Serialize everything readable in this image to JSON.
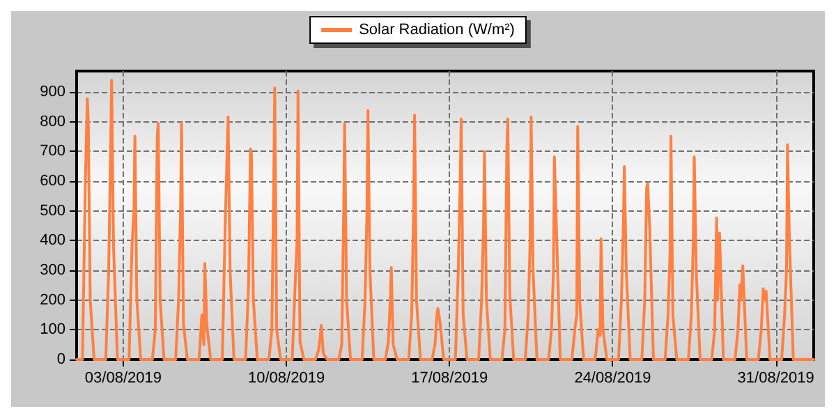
{
  "chart_data": {
    "type": "line",
    "xlim": [
      "2019-08-01T00:00",
      "2019-09-01T15:00"
    ],
    "ylim": [
      0,
      970
    ],
    "yticks": [
      0,
      100,
      200,
      300,
      400,
      500,
      600,
      700,
      800,
      900
    ],
    "xticks": [
      {
        "value": "2019-08-03",
        "label": "03/08/2019"
      },
      {
        "value": "2019-08-10",
        "label": "10/08/2019"
      },
      {
        "value": "2019-08-17",
        "label": "17/08/2019"
      },
      {
        "value": "2019-08-24",
        "label": "24/08/2019"
      },
      {
        "value": "2019-08-31",
        "label": "31/08/2019"
      }
    ],
    "grid": true,
    "legend": "top",
    "marker": "none",
    "line_style": "solid",
    "series": [
      {
        "name": "Solar Radiation (W/m²)",
        "color": "#ff8040",
        "x": [
          "2019-08-01T00:00",
          "2019-08-01T06:00",
          "2019-08-01T09:00",
          "2019-08-01T11:00",
          "2019-08-01T12:00",
          "2019-08-01T14:00",
          "2019-08-01T18:00",
          "2019-08-02T06:00",
          "2019-08-02T09:00",
          "2019-08-02T11:00",
          "2019-08-02T12:00",
          "2019-08-02T14:00",
          "2019-08-02T18:00",
          "2019-08-03T06:00",
          "2019-08-03T09:00",
          "2019-08-03T11:00",
          "2019-08-03T12:00",
          "2019-08-03T14:00",
          "2019-08-03T18:00",
          "2019-08-04T06:00",
          "2019-08-04T09:00",
          "2019-08-04T11:00",
          "2019-08-04T12:00",
          "2019-08-04T14:00",
          "2019-08-04T18:00",
          "2019-08-05T06:00",
          "2019-08-05T09:00",
          "2019-08-05T11:00",
          "2019-08-05T12:00",
          "2019-08-05T14:00",
          "2019-08-05T18:00",
          "2019-08-06T06:00",
          "2019-08-06T09:00",
          "2019-08-06T11:00",
          "2019-08-06T12:00",
          "2019-08-06T14:00",
          "2019-08-06T18:00",
          "2019-08-07T06:00",
          "2019-08-07T09:00",
          "2019-08-07T11:00",
          "2019-08-07T12:00",
          "2019-08-07T14:00",
          "2019-08-07T18:00",
          "2019-08-08T06:00",
          "2019-08-08T09:00",
          "2019-08-08T11:00",
          "2019-08-08T12:00",
          "2019-08-08T14:00",
          "2019-08-08T18:00",
          "2019-08-09T06:00",
          "2019-08-09T09:00",
          "2019-08-09T11:00",
          "2019-08-09T12:00",
          "2019-08-09T14:00",
          "2019-08-09T18:00",
          "2019-08-10T06:00",
          "2019-08-10T09:00",
          "2019-08-10T11:00",
          "2019-08-10T12:00",
          "2019-08-10T14:00",
          "2019-08-10T18:00",
          "2019-08-11T06:00",
          "2019-08-11T09:00",
          "2019-08-11T11:00",
          "2019-08-11T12:00",
          "2019-08-11T14:00",
          "2019-08-11T18:00",
          "2019-08-12T06:00",
          "2019-08-12T09:00",
          "2019-08-12T11:00",
          "2019-08-12T12:00",
          "2019-08-12T14:00",
          "2019-08-12T18:00",
          "2019-08-13T06:00",
          "2019-08-13T09:00",
          "2019-08-13T11:00",
          "2019-08-13T12:00",
          "2019-08-13T14:00",
          "2019-08-13T18:00",
          "2019-08-14T06:00",
          "2019-08-14T09:00",
          "2019-08-14T11:00",
          "2019-08-14T12:00",
          "2019-08-14T14:00",
          "2019-08-14T18:00",
          "2019-08-15T06:00",
          "2019-08-15T09:00",
          "2019-08-15T11:00",
          "2019-08-15T12:00",
          "2019-08-15T14:00",
          "2019-08-15T18:00",
          "2019-08-16T06:00",
          "2019-08-16T09:00",
          "2019-08-16T11:00",
          "2019-08-16T12:00",
          "2019-08-16T14:00",
          "2019-08-16T18:00",
          "2019-08-17T06:00",
          "2019-08-17T09:00",
          "2019-08-17T11:00",
          "2019-08-17T12:00",
          "2019-08-17T14:00",
          "2019-08-17T18:00",
          "2019-08-18T06:00",
          "2019-08-18T09:00",
          "2019-08-18T11:00",
          "2019-08-18T12:00",
          "2019-08-18T14:00",
          "2019-08-18T18:00",
          "2019-08-19T06:00",
          "2019-08-19T09:00",
          "2019-08-19T11:00",
          "2019-08-19T12:00",
          "2019-08-19T14:00",
          "2019-08-19T18:00",
          "2019-08-20T06:00",
          "2019-08-20T09:00",
          "2019-08-20T11:00",
          "2019-08-20T12:00",
          "2019-08-20T14:00",
          "2019-08-20T18:00",
          "2019-08-21T06:00",
          "2019-08-21T09:00",
          "2019-08-21T11:00",
          "2019-08-21T12:00",
          "2019-08-21T14:00",
          "2019-08-21T18:00",
          "2019-08-22T06:00",
          "2019-08-22T09:00",
          "2019-08-22T11:00",
          "2019-08-22T12:00",
          "2019-08-22T14:00",
          "2019-08-22T18:00",
          "2019-08-23T06:00",
          "2019-08-23T09:00",
          "2019-08-23T11:00",
          "2019-08-23T12:00",
          "2019-08-23T14:00",
          "2019-08-23T18:00",
          "2019-08-24T06:00",
          "2019-08-24T09:00",
          "2019-08-24T11:00",
          "2019-08-24T12:00",
          "2019-08-24T14:00",
          "2019-08-24T18:00",
          "2019-08-25T06:00",
          "2019-08-25T09:00",
          "2019-08-25T11:00",
          "2019-08-25T12:00",
          "2019-08-25T14:00",
          "2019-08-25T18:00",
          "2019-08-26T06:00",
          "2019-08-26T09:00",
          "2019-08-26T11:00",
          "2019-08-26T12:00",
          "2019-08-26T14:00",
          "2019-08-26T18:00",
          "2019-08-27T06:00",
          "2019-08-27T09:00",
          "2019-08-27T11:00",
          "2019-08-27T12:00",
          "2019-08-27T14:00",
          "2019-08-27T18:00",
          "2019-08-28T06:00",
          "2019-08-28T09:00",
          "2019-08-28T11:00",
          "2019-08-28T12:00",
          "2019-08-28T14:00",
          "2019-08-28T18:00",
          "2019-08-29T06:00",
          "2019-08-29T09:00",
          "2019-08-29T11:00",
          "2019-08-29T12:00",
          "2019-08-29T14:00",
          "2019-08-29T18:00",
          "2019-08-30T06:00",
          "2019-08-30T09:00",
          "2019-08-30T11:00",
          "2019-08-30T12:00",
          "2019-08-30T14:00",
          "2019-08-30T18:00",
          "2019-08-31T06:00",
          "2019-08-31T09:00",
          "2019-08-31T11:00",
          "2019-08-31T12:00",
          "2019-08-31T14:00",
          "2019-08-31T18:00",
          "2019-09-01T15:00"
        ],
        "values": [
          0,
          0,
          600,
          877,
          800,
          200,
          0,
          0,
          300,
          700,
          939,
          380,
          0,
          0,
          380,
          500,
          751,
          200,
          0,
          0,
          100,
          750,
          794,
          200,
          0,
          0,
          200,
          500,
          794,
          120,
          0,
          0,
          150,
          50,
          323,
          120,
          0,
          0,
          450,
          700,
          816,
          300,
          0,
          0,
          250,
          708,
          690,
          200,
          0,
          0,
          100,
          600,
          913,
          100,
          0,
          0,
          250,
          400,
          903,
          60,
          0,
          0,
          30,
          80,
          115,
          20,
          0,
          0,
          50,
          500,
          794,
          200,
          0,
          0,
          200,
          500,
          837,
          300,
          0,
          0,
          60,
          200,
          309,
          50,
          0,
          0,
          150,
          500,
          822,
          200,
          0,
          0,
          50,
          150,
          171,
          130,
          0,
          0,
          300,
          600,
          809,
          150,
          0,
          0,
          200,
          450,
          700,
          200,
          0,
          0,
          100,
          700,
          809,
          220,
          0,
          0,
          150,
          400,
          816,
          300,
          0,
          0,
          100,
          300,
          681,
          450,
          0,
          0,
          100,
          150,
          783,
          200,
          0,
          0,
          100,
          80,
          406,
          100,
          0,
          0,
          200,
          450,
          649,
          300,
          0,
          0,
          200,
          580,
          591,
          450,
          0,
          0,
          150,
          350,
          751,
          150,
          0,
          0,
          150,
          400,
          681,
          300,
          0,
          0,
          100,
          476,
          200,
          425,
          0,
          0,
          100,
          252,
          200,
          315,
          0,
          0,
          100,
          238,
          200,
          230,
          0,
          0,
          150,
          300,
          722,
          400,
          0,
          0
        ]
      }
    ]
  }
}
